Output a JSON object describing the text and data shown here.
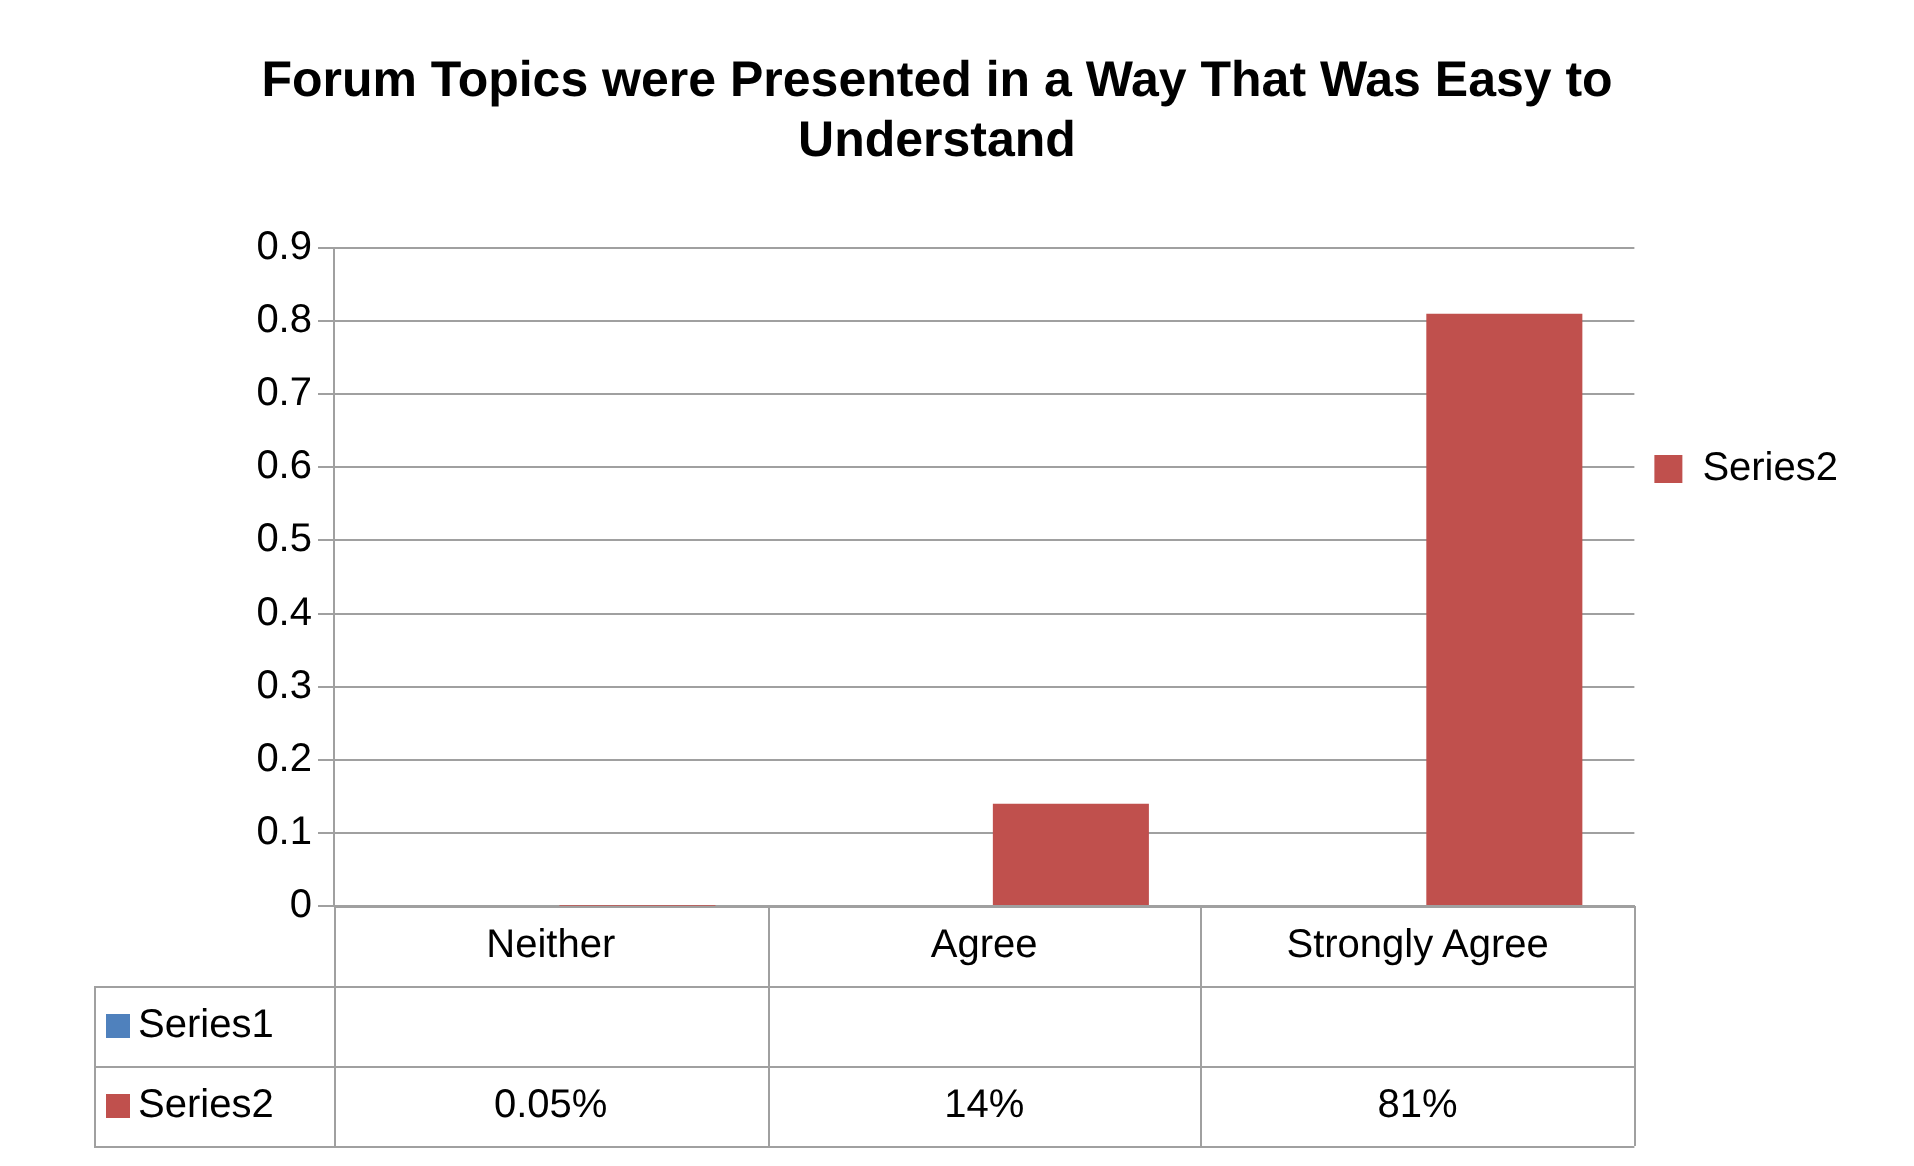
{
  "chart_data": {
    "type": "bar",
    "title": "Forum Topics were Presented in a Way That Was Easy to Understand",
    "categories": [
      "Neither",
      "Agree",
      "Strongly Agree"
    ],
    "series": [
      {
        "name": "Series1",
        "color": "#4f81bd",
        "values": [
          null,
          null,
          null
        ],
        "value_labels": [
          null,
          null,
          null
        ]
      },
      {
        "name": "Series2",
        "color": "#c0504d",
        "values": [
          0.0005,
          0.14,
          0.81
        ],
        "value_labels": [
          "0.05%",
          "14%",
          "81%"
        ]
      }
    ],
    "ylim": [
      0,
      0.9
    ],
    "yticks": [
      0,
      0.1,
      0.2,
      0.3,
      0.4,
      0.5,
      0.6,
      0.7,
      0.8,
      0.9
    ],
    "grid": "y",
    "legend": "right"
  }
}
